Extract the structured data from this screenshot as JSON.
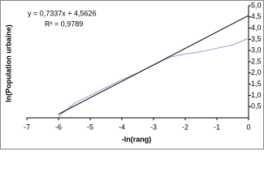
{
  "chart_data": {
    "type": "line",
    "annotations": [
      "y = 0,7337x + 4,5626",
      "R² = 0,9789"
    ],
    "x_label": "-ln(rang)",
    "y_label": "ln(Population urbaine)",
    "series": [
      {
        "color": "#9999dd",
        "x": [
          -6,
          -5.5,
          -5,
          -4.5,
          -4,
          -3.5,
          -3,
          -2.5,
          -2,
          -1.5,
          -1,
          -0.5,
          0
        ],
        "values": [
          0.05,
          0.65,
          1.0,
          1.35,
          1.7,
          2.0,
          2.35,
          2.7,
          2.85,
          2.95,
          3.1,
          3.25,
          3.55
        ]
      },
      {
        "color": "#000000",
        "x": [
          -6,
          0
        ],
        "values": [
          0.1604,
          4.5626
        ]
      }
    ],
    "xlim": [
      -7,
      0
    ],
    "xticks": [
      -7,
      -6,
      -5,
      -4,
      -3,
      -2,
      -1,
      0
    ],
    "ylim": [
      0,
      5
    ],
    "yticks": [
      {
        "value": 0.5,
        "label": "0,5"
      },
      {
        "value": 1,
        "label": "1,0"
      },
      {
        "value": 1.5,
        "label": "1,5"
      },
      {
        "value": 2,
        "label": "2,0"
      },
      {
        "value": 2.5,
        "label": "2,5"
      },
      {
        "value": 3,
        "label": "3,0"
      },
      {
        "value": 3.5,
        "label": "3,5"
      },
      {
        "value": 4,
        "label": "4,0"
      },
      {
        "value": 4.5,
        "label": "4,5"
      },
      {
        "value": 5,
        "label": "5,0"
      }
    ]
  }
}
